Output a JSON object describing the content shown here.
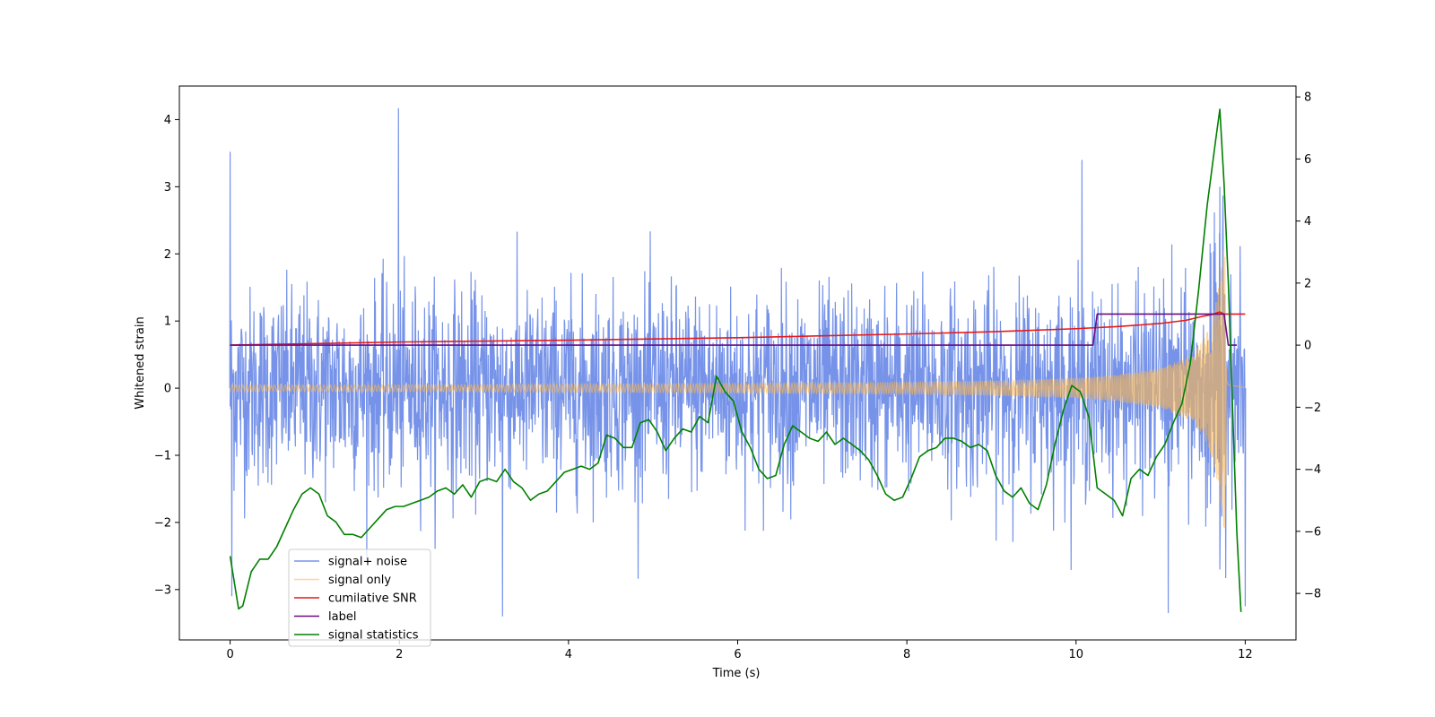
{
  "chart_data": {
    "type": "line",
    "title": "",
    "xlabel": "Time (s)",
    "ylabel": "Whitened strain",
    "y2label": "",
    "xlim": [
      -0.6,
      12.6
    ],
    "ylim": [
      -3.75,
      4.5
    ],
    "y2lim": [
      -9.5,
      8.35
    ],
    "xticks": [
      0,
      2,
      4,
      6,
      8,
      10,
      12
    ],
    "xtick_labels": [
      "0",
      "2",
      "4",
      "6",
      "8",
      "10",
      "12"
    ],
    "yticks": [
      -3,
      -2,
      -1,
      0,
      1,
      2,
      3,
      4
    ],
    "ytick_labels": [
      "−3",
      "−2",
      "−1",
      "0",
      "1",
      "2",
      "3",
      "4"
    ],
    "y2ticks": [
      -8,
      -6,
      -4,
      -2,
      0,
      2,
      4,
      6,
      8
    ],
    "y2tick_labels": [
      "−8",
      "−6",
      "−4",
      "−2",
      "0",
      "2",
      "4",
      "6",
      "8"
    ],
    "grid": false,
    "legend_position": "lower-left",
    "series": [
      {
        "name": "signal+ noise",
        "axis": "left",
        "color": "#4169e1",
        "kind": "noise-band",
        "x_range": [
          0,
          12
        ],
        "envelope": {
          "upper_typical": 1.9,
          "upper_max": 3.1,
          "lower_typical": -1.9,
          "lower_max": -3.0
        },
        "peaks": [
          {
            "x": 0.0,
            "y": 3.52
          },
          {
            "x": 0.02,
            "y": -3.1
          },
          {
            "x": 1.99,
            "y": 4.17
          },
          {
            "x": 3.22,
            "y": -3.4
          },
          {
            "x": 10.07,
            "y": 3.4
          },
          {
            "x": 11.09,
            "y": -3.35
          },
          {
            "x": 11.7,
            "y": 3.0
          },
          {
            "x": 12.0,
            "y": -3.25
          }
        ]
      },
      {
        "name": "signal only",
        "axis": "left",
        "color": "#ffb84d",
        "kind": "chirp",
        "x": [
          0,
          2,
          4,
          6,
          8,
          9,
          10,
          10.5,
          11,
          11.3,
          11.5,
          11.6,
          11.7,
          11.75,
          11.8,
          12.0
        ],
        "amplitude": [
          0.05,
          0.05,
          0.06,
          0.07,
          0.09,
          0.11,
          0.15,
          0.2,
          0.3,
          0.45,
          0.7,
          1.0,
          1.6,
          2.3,
          0.6,
          0.1
        ]
      },
      {
        "name": "cumilative SNR",
        "axis": "right",
        "color": "#e41a1c",
        "x": [
          0,
          2,
          4,
          6,
          8,
          9,
          10,
          10.5,
          11,
          11.3,
          11.5,
          11.6,
          11.7,
          11.75,
          11.8,
          12.0
        ],
        "values": [
          0.0,
          0.1,
          0.16,
          0.24,
          0.36,
          0.43,
          0.53,
          0.6,
          0.7,
          0.8,
          0.93,
          0.98,
          1.07,
          1.0,
          1.0,
          1.0
        ]
      },
      {
        "name": "label",
        "axis": "right",
        "color": "#6a0d83",
        "x": [
          0,
          10.2,
          10.25,
          11.75,
          11.8,
          11.9
        ],
        "values": [
          0,
          0,
          1,
          1,
          0,
          0
        ]
      },
      {
        "name": "signal statistics",
        "axis": "right",
        "color": "#008000",
        "x": [
          0.0,
          0.1,
          0.15,
          0.25,
          0.35,
          0.45,
          0.55,
          0.65,
          0.75,
          0.85,
          0.95,
          1.05,
          1.15,
          1.25,
          1.35,
          1.45,
          1.55,
          1.65,
          1.75,
          1.85,
          1.95,
          2.05,
          2.15,
          2.25,
          2.35,
          2.45,
          2.55,
          2.65,
          2.75,
          2.85,
          2.95,
          3.05,
          3.15,
          3.25,
          3.35,
          3.45,
          3.55,
          3.65,
          3.75,
          3.85,
          3.95,
          4.05,
          4.15,
          4.25,
          4.35,
          4.45,
          4.55,
          4.65,
          4.75,
          4.85,
          4.95,
          5.05,
          5.15,
          5.25,
          5.35,
          5.45,
          5.55,
          5.65,
          5.75,
          5.85,
          5.95,
          6.05,
          6.15,
          6.25,
          6.35,
          6.45,
          6.55,
          6.65,
          6.75,
          6.85,
          6.95,
          7.05,
          7.15,
          7.25,
          7.35,
          7.45,
          7.55,
          7.65,
          7.75,
          7.85,
          7.95,
          8.05,
          8.15,
          8.25,
          8.35,
          8.45,
          8.55,
          8.65,
          8.75,
          8.85,
          8.95,
          9.05,
          9.15,
          9.25,
          9.35,
          9.45,
          9.55,
          9.65,
          9.75,
          9.85,
          9.95,
          10.05,
          10.15,
          10.25,
          10.35,
          10.45,
          10.55,
          10.65,
          10.75,
          10.85,
          10.95,
          11.05,
          11.15,
          11.25,
          11.35,
          11.45,
          11.55,
          11.65,
          11.7,
          11.75,
          11.8,
          11.85,
          11.9,
          11.95
        ],
        "values": [
          -6.8,
          -8.5,
          -8.4,
          -7.3,
          -6.9,
          -6.9,
          -6.5,
          -5.9,
          -5.3,
          -4.8,
          -4.6,
          -4.8,
          -5.5,
          -5.7,
          -6.1,
          -6.1,
          -6.2,
          -5.9,
          -5.6,
          -5.3,
          -5.2,
          -5.2,
          -5.1,
          -5.0,
          -4.9,
          -4.7,
          -4.6,
          -4.8,
          -4.5,
          -4.9,
          -4.4,
          -4.3,
          -4.4,
          -4.0,
          -4.4,
          -4.6,
          -5.0,
          -4.8,
          -4.7,
          -4.4,
          -4.1,
          -4.0,
          -3.9,
          -4.0,
          -3.8,
          -2.9,
          -3.0,
          -3.3,
          -3.3,
          -2.5,
          -2.4,
          -2.8,
          -3.4,
          -3.0,
          -2.7,
          -2.8,
          -2.3,
          -2.5,
          -1.0,
          -1.5,
          -1.8,
          -2.8,
          -3.3,
          -4.0,
          -4.3,
          -4.2,
          -3.2,
          -2.6,
          -2.8,
          -3.0,
          -3.1,
          -2.8,
          -3.2,
          -3.0,
          -3.2,
          -3.4,
          -3.7,
          -4.2,
          -4.8,
          -5.0,
          -4.9,
          -4.3,
          -3.6,
          -3.4,
          -3.3,
          -3.0,
          -3.0,
          -3.1,
          -3.3,
          -3.2,
          -3.4,
          -4.2,
          -4.7,
          -4.9,
          -4.6,
          -5.1,
          -5.3,
          -4.5,
          -3.2,
          -2.1,
          -1.3,
          -1.5,
          -2.3,
          -4.6,
          -4.8,
          -5.0,
          -5.5,
          -4.3,
          -4.0,
          -4.2,
          -3.6,
          -3.2,
          -2.5,
          -1.9,
          -0.6,
          1.8,
          4.5,
          6.6,
          7.6,
          5.2,
          2.0,
          -2.0,
          -6.0,
          -8.6
        ]
      }
    ]
  }
}
